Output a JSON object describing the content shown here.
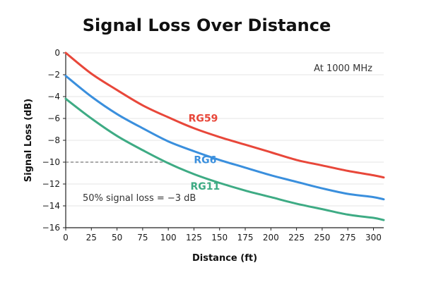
{
  "chart_data": {
    "type": "line",
    "title": "Signal Loss Over Distance",
    "xlabel": "Distance (ft)",
    "ylabel": "Signal Loss (dB)",
    "xlim": [
      0,
      310
    ],
    "ylim": [
      -16,
      0
    ],
    "x_ticks": [
      0,
      25,
      50,
      75,
      100,
      125,
      150,
      175,
      200,
      225,
      250,
      275,
      300
    ],
    "y_ticks": [
      0,
      -2,
      -4,
      -6,
      -8,
      -10,
      -12,
      -14,
      -16
    ],
    "grid": "horizontal",
    "colors": {
      "RG59": "#e8473a",
      "RG6": "#3a8fdd",
      "RG11": "#3eab84"
    },
    "series": [
      {
        "name": "RG59",
        "x": [
          0,
          25,
          50,
          75,
          100,
          125,
          150,
          175,
          200,
          225,
          250,
          275,
          300,
          310
        ],
        "y": [
          0,
          -1.9,
          -3.4,
          -4.8,
          -5.9,
          -6.9,
          -7.7,
          -8.4,
          -9.1,
          -9.8,
          -10.3,
          -10.8,
          -11.2,
          -11.4
        ]
      },
      {
        "name": "RG6",
        "x": [
          0,
          25,
          50,
          75,
          100,
          125,
          150,
          175,
          200,
          225,
          250,
          275,
          300,
          310
        ],
        "y": [
          -2.1,
          -4.0,
          -5.6,
          -6.9,
          -8.1,
          -9.0,
          -9.8,
          -10.5,
          -11.2,
          -11.8,
          -12.4,
          -12.9,
          -13.2,
          -13.4
        ]
      },
      {
        "name": "RG11",
        "x": [
          0,
          25,
          50,
          75,
          100,
          125,
          150,
          175,
          200,
          225,
          250,
          275,
          300,
          310
        ],
        "y": [
          -4.2,
          -6.0,
          -7.6,
          -8.9,
          -10.1,
          -11.1,
          -11.9,
          -12.6,
          -13.2,
          -13.8,
          -14.3,
          -14.8,
          -15.1,
          -15.3
        ]
      }
    ],
    "reference_line": {
      "y": -10,
      "x_from": 0,
      "x_to": 100
    },
    "annotations": {
      "top_right": "At 1000 MHz",
      "loss_note": "50% signal loss = −3 dB"
    }
  }
}
